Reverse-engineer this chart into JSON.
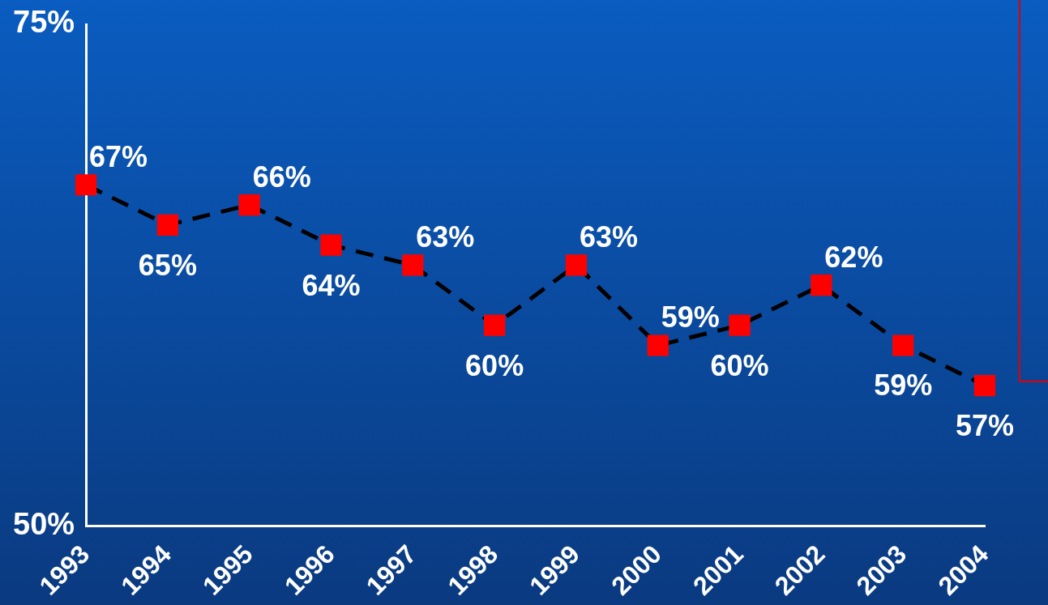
{
  "chart_data": {
    "type": "line",
    "categories": [
      "1993",
      "1994",
      "1995",
      "1996",
      "1997",
      "1998",
      "1999",
      "2000",
      "2001",
      "2002",
      "2003",
      "2004"
    ],
    "series": [
      {
        "color": "#ff0000",
        "values": [
          67,
          65,
          66,
          64,
          63,
          60,
          63,
          59,
          60,
          62,
          59,
          57
        ],
        "value_labels": [
          "67%",
          "65%",
          "66%",
          "64%",
          "63%",
          "60%",
          "63%",
          "59%",
          "60%",
          "62%",
          "59%",
          "57%"
        ]
      }
    ],
    "ylim": [
      50,
      75
    ],
    "yticks": [
      {
        "value": 50,
        "label": "50%"
      },
      {
        "value": 75,
        "label": "75%"
      }
    ],
    "grid": false,
    "legend": false,
    "marker": "square",
    "line_style": "dashed"
  }
}
